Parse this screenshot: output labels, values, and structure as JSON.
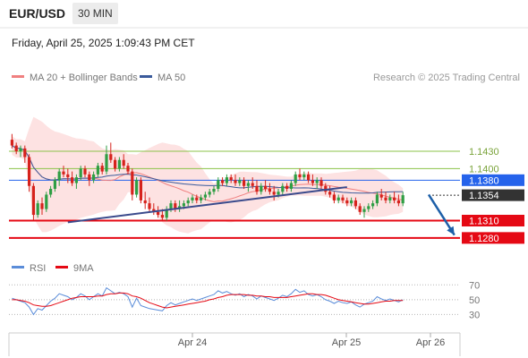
{
  "header": {
    "symbol": "EUR/USD",
    "timeframe": "30 MIN",
    "datetime": "Friday, April 25, 2025 1:09:43 PM CET"
  },
  "legend": {
    "ma20": "MA 20 + Bollinger Bands",
    "ma50": "MA 50",
    "rsi": "RSI",
    "rsi_ma": "9MA"
  },
  "credit": "Research © 2025 Trading Central",
  "colors": {
    "ma20": "#f08080",
    "ma50": "#3a5a9b",
    "bands_fill": "#fde2e2",
    "candle_up": "#2f9e44",
    "candle_down": "#d6221c",
    "pivot": "#2563eb",
    "support": "#e50914",
    "resistance": "#8bc34a",
    "current": "#333333",
    "trend": "#3a4a8c",
    "arrow": "#1d5fa8",
    "rsi": "#5b8dd9",
    "rsi_ma": "#e50914"
  },
  "chart_data": [
    {
      "type": "candlestick",
      "ylim": [
        1.1255,
        1.1475
      ],
      "x_ticks": [
        "Apr 24",
        "Apr 25",
        "Apr 26"
      ],
      "levels": [
        {
          "label": "1.1430",
          "value": 1.143,
          "kind": "resistance"
        },
        {
          "label": "1.1400",
          "value": 1.14,
          "kind": "resistance"
        },
        {
          "label": "1.1380",
          "value": 1.138,
          "kind": "pivot"
        },
        {
          "label": "1.1354",
          "value": 1.1354,
          "kind": "current"
        },
        {
          "label": "1.1310",
          "value": 1.131,
          "kind": "support"
        },
        {
          "label": "1.1280",
          "value": 1.128,
          "kind": "support"
        }
      ],
      "trendline": [
        [
          13,
          1.1307
        ],
        [
          78,
          1.1368
        ]
      ],
      "forecast_arrow": [
        [
          97,
          1.1355
        ],
        [
          103,
          1.1285
        ]
      ],
      "candles": [
        [
          1.145,
          1.146,
          1.1435,
          1.144
        ],
        [
          1.144,
          1.1445,
          1.1425,
          1.143
        ],
        [
          1.143,
          1.144,
          1.142,
          1.1435
        ],
        [
          1.1435,
          1.144,
          1.141,
          1.142
        ],
        [
          1.142,
          1.1425,
          1.136,
          1.137
        ],
        [
          1.137,
          1.1375,
          1.131,
          1.132
        ],
        [
          1.132,
          1.1345,
          1.1315,
          1.134
        ],
        [
          1.134,
          1.135,
          1.132,
          1.133
        ],
        [
          1.133,
          1.136,
          1.1325,
          1.1355
        ],
        [
          1.1355,
          1.137,
          1.135,
          1.1365
        ],
        [
          1.1365,
          1.1385,
          1.136,
          1.138
        ],
        [
          1.138,
          1.14,
          1.137,
          1.1395
        ],
        [
          1.1395,
          1.1405,
          1.1385,
          1.139
        ],
        [
          1.139,
          1.14,
          1.1375,
          1.1385
        ],
        [
          1.1385,
          1.1395,
          1.137,
          1.1375
        ],
        [
          1.1375,
          1.139,
          1.1365,
          1.1385
        ],
        [
          1.1385,
          1.1405,
          1.138,
          1.14
        ],
        [
          1.14,
          1.1405,
          1.1385,
          1.139
        ],
        [
          1.139,
          1.1395,
          1.137,
          1.138
        ],
        [
          1.138,
          1.1395,
          1.1375,
          1.139
        ],
        [
          1.139,
          1.141,
          1.1385,
          1.1405
        ],
        [
          1.1405,
          1.141,
          1.139,
          1.1395
        ],
        [
          1.1395,
          1.144,
          1.139,
          1.1425
        ],
        [
          1.1425,
          1.1445,
          1.141,
          1.1415
        ],
        [
          1.1415,
          1.142,
          1.1395,
          1.14
        ],
        [
          1.14,
          1.142,
          1.1395,
          1.1415
        ],
        [
          1.1415,
          1.1425,
          1.14,
          1.1405
        ],
        [
          1.1405,
          1.141,
          1.139,
          1.1395
        ],
        [
          1.1395,
          1.14,
          1.1345,
          1.1355
        ],
        [
          1.1355,
          1.1385,
          1.135,
          1.138
        ],
        [
          1.138,
          1.1385,
          1.134,
          1.1345
        ],
        [
          1.1345,
          1.136,
          1.133,
          1.134
        ],
        [
          1.134,
          1.135,
          1.1325,
          1.133
        ],
        [
          1.133,
          1.134,
          1.132,
          1.1325
        ],
        [
          1.1325,
          1.1335,
          1.1315,
          1.132
        ],
        [
          1.132,
          1.133,
          1.131,
          1.1315
        ],
        [
          1.1315,
          1.1335,
          1.131,
          1.133
        ],
        [
          1.133,
          1.1345,
          1.1325,
          1.134
        ],
        [
          1.134,
          1.1345,
          1.1325,
          1.133
        ],
        [
          1.133,
          1.1345,
          1.1325,
          1.1335
        ],
        [
          1.1335,
          1.1345,
          1.133,
          1.134
        ],
        [
          1.134,
          1.135,
          1.1335,
          1.1345
        ],
        [
          1.1345,
          1.1355,
          1.134,
          1.135
        ],
        [
          1.135,
          1.1355,
          1.134,
          1.1345
        ],
        [
          1.1345,
          1.1355,
          1.134,
          1.135
        ],
        [
          1.135,
          1.136,
          1.1345,
          1.1355
        ],
        [
          1.1355,
          1.1365,
          1.135,
          1.136
        ],
        [
          1.136,
          1.137,
          1.1355,
          1.1365
        ],
        [
          1.1365,
          1.1385,
          1.136,
          1.138
        ],
        [
          1.138,
          1.1385,
          1.137,
          1.1375
        ],
        [
          1.1375,
          1.139,
          1.137,
          1.1385
        ],
        [
          1.1385,
          1.139,
          1.1375,
          1.138
        ],
        [
          1.138,
          1.139,
          1.137,
          1.1375
        ],
        [
          1.1375,
          1.1385,
          1.137,
          1.138
        ],
        [
          1.138,
          1.1385,
          1.1365,
          1.137
        ],
        [
          1.137,
          1.138,
          1.136,
          1.1375
        ],
        [
          1.1375,
          1.1385,
          1.1365,
          1.137
        ],
        [
          1.137,
          1.138,
          1.1355,
          1.136
        ],
        [
          1.136,
          1.1375,
          1.1355,
          1.137
        ],
        [
          1.137,
          1.138,
          1.136,
          1.1365
        ],
        [
          1.1365,
          1.1375,
          1.1355,
          1.136
        ],
        [
          1.136,
          1.137,
          1.1345,
          1.1355
        ],
        [
          1.1355,
          1.1365,
          1.135,
          1.136
        ],
        [
          1.136,
          1.1375,
          1.1355,
          1.137
        ],
        [
          1.137,
          1.1375,
          1.136,
          1.1365
        ],
        [
          1.1365,
          1.138,
          1.136,
          1.1375
        ],
        [
          1.1375,
          1.1395,
          1.137,
          1.139
        ],
        [
          1.139,
          1.14,
          1.138,
          1.1385
        ],
        [
          1.1385,
          1.1395,
          1.138,
          1.139
        ],
        [
          1.139,
          1.1395,
          1.1375,
          1.138
        ],
        [
          1.138,
          1.139,
          1.137,
          1.1375
        ],
        [
          1.1375,
          1.1385,
          1.1365,
          1.138
        ],
        [
          1.138,
          1.1385,
          1.1365,
          1.137
        ],
        [
          1.137,
          1.1375,
          1.1355,
          1.136
        ],
        [
          1.136,
          1.137,
          1.135,
          1.1355
        ],
        [
          1.1355,
          1.136,
          1.134,
          1.1345
        ],
        [
          1.1345,
          1.1355,
          1.134,
          1.135
        ],
        [
          1.135,
          1.1355,
          1.134,
          1.1345
        ],
        [
          1.1345,
          1.135,
          1.1335,
          1.134
        ],
        [
          1.134,
          1.135,
          1.1335,
          1.1345
        ],
        [
          1.1345,
          1.135,
          1.133,
          1.1335
        ],
        [
          1.1335,
          1.134,
          1.132,
          1.1325
        ],
        [
          1.1325,
          1.1335,
          1.1315,
          1.133
        ],
        [
          1.133,
          1.134,
          1.1325,
          1.1335
        ],
        [
          1.1335,
          1.1345,
          1.133,
          1.134
        ],
        [
          1.134,
          1.136,
          1.1335,
          1.1355
        ],
        [
          1.1355,
          1.1365,
          1.1345,
          1.135
        ],
        [
          1.135,
          1.136,
          1.134,
          1.1345
        ],
        [
          1.1345,
          1.1355,
          1.134,
          1.135
        ],
        [
          1.135,
          1.136,
          1.134,
          1.1345
        ],
        [
          1.1345,
          1.1355,
          1.1335,
          1.134
        ],
        [
          1.134,
          1.136,
          1.1335,
          1.1354
        ]
      ]
    },
    {
      "type": "line",
      "name": "RSI",
      "yticks": [
        70,
        50,
        30
      ],
      "ylim": [
        10,
        80
      ],
      "rsi": [
        52,
        50,
        48,
        46,
        40,
        30,
        38,
        36,
        42,
        48,
        52,
        58,
        56,
        54,
        50,
        53,
        58,
        55,
        50,
        54,
        58,
        55,
        66,
        62,
        58,
        60,
        58,
        54,
        40,
        52,
        42,
        40,
        38,
        37,
        36,
        35,
        42,
        46,
        43,
        45,
        47,
        49,
        51,
        49,
        51,
        53,
        55,
        57,
        62,
        59,
        61,
        58,
        56,
        58,
        54,
        57,
        55,
        51,
        55,
        53,
        51,
        49,
        52,
        56,
        54,
        58,
        64,
        60,
        62,
        57,
        55,
        57,
        54,
        50,
        48,
        45,
        48,
        46,
        45,
        47,
        43,
        40,
        44,
        46,
        48,
        54,
        51,
        49,
        51,
        49,
        47,
        50
      ],
      "rsi_ma": [
        50,
        50,
        49,
        48,
        46,
        43,
        42,
        41,
        41,
        42,
        44,
        46,
        48,
        50,
        52,
        53,
        54,
        54,
        54,
        54,
        55,
        55,
        57,
        58,
        58,
        59,
        59,
        58,
        55,
        54,
        52,
        49,
        46,
        44,
        42,
        40,
        39,
        40,
        41,
        42,
        43,
        44,
        45,
        46,
        47,
        48,
        50,
        51,
        53,
        54,
        56,
        57,
        57,
        57,
        57,
        56,
        56,
        55,
        55,
        54,
        54,
        53,
        53,
        53,
        53,
        54,
        55,
        56,
        57,
        58,
        58,
        57,
        57,
        56,
        54,
        52,
        50,
        49,
        48,
        47,
        46,
        45,
        44,
        44,
        45,
        46,
        47,
        48,
        48,
        49,
        49,
        49
      ]
    }
  ]
}
